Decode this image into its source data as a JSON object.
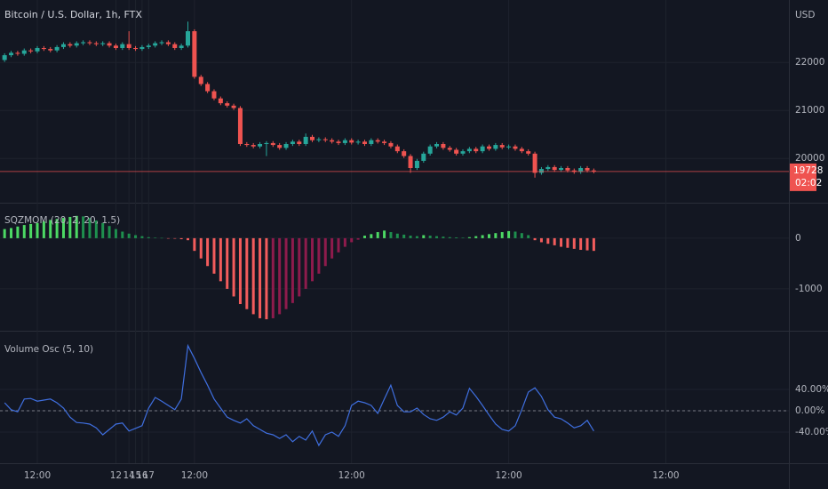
{
  "chart_data": [
    {
      "type": "candlestick",
      "title": "Bitcoin / U.S. Dollar, 1h, FTX",
      "unit_label": "USD",
      "up_color": "#26a69a",
      "down_color": "#ef5350",
      "x": [
        -5,
        -4,
        -3,
        -2,
        -1,
        0,
        1,
        2,
        3,
        4,
        5,
        6,
        7,
        8,
        9,
        10,
        11,
        12,
        13,
        14,
        15,
        16,
        17,
        18,
        19,
        20,
        21,
        22,
        23,
        24,
        25,
        26,
        27,
        28,
        29,
        30,
        31,
        32,
        33,
        34,
        35,
        36,
        37,
        38,
        39,
        40,
        41,
        42,
        43,
        44,
        45,
        46,
        47,
        48,
        49,
        50,
        51,
        52,
        53,
        54,
        55,
        56,
        57,
        58,
        59,
        60,
        61,
        62,
        63,
        64,
        65,
        66,
        67,
        68,
        69,
        70,
        71,
        72,
        73,
        74,
        75,
        76,
        77,
        78,
        79,
        80,
        81,
        82,
        83,
        84,
        85
      ],
      "open": [
        22050,
        22150,
        22200,
        22180,
        22250,
        22230,
        22300,
        22280,
        22250,
        22320,
        22380,
        22350,
        22400,
        22420,
        22400,
        22380,
        22400,
        22350,
        22300,
        22380,
        22300,
        22280,
        22320,
        22350,
        22400,
        22420,
        22380,
        22300,
        22350,
        22650,
        21700,
        21550,
        21400,
        21250,
        21150,
        21100,
        21050,
        20300,
        20280,
        20250,
        20300,
        20320,
        20280,
        20220,
        20300,
        20350,
        20300,
        20450,
        20380,
        20400,
        20380,
        20350,
        20320,
        20380,
        20330,
        20350,
        20300,
        20380,
        20350,
        20320,
        20250,
        20150,
        20050,
        19800,
        19950,
        20100,
        20250,
        20300,
        20220,
        20180,
        20100,
        20150,
        20200,
        20150,
        20250,
        20200,
        20280,
        20230,
        20250,
        20200,
        20150,
        20100,
        19700,
        19780,
        19820,
        19760,
        19800,
        19750,
        19720,
        19800,
        19750
      ],
      "high": [
        22190,
        22240,
        22240,
        22290,
        22290,
        22340,
        22340,
        22320,
        22360,
        22420,
        22420,
        22440,
        22460,
        22460,
        22440,
        22440,
        22440,
        22390,
        22420,
        22650,
        22340,
        22360,
        22390,
        22440,
        22460,
        22460,
        22420,
        22390,
        22850,
        22690,
        21740,
        21590,
        21440,
        21290,
        21190,
        21140,
        21090,
        20340,
        20320,
        20340,
        20360,
        20360,
        20320,
        20340,
        20390,
        20390,
        20520,
        20490,
        20440,
        20440,
        20420,
        20390,
        20420,
        20420,
        20390,
        20390,
        20420,
        20420,
        20390,
        20360,
        20290,
        20190,
        20090,
        19990,
        20140,
        20290,
        20340,
        20340,
        20260,
        20220,
        20190,
        20240,
        20240,
        20290,
        20290,
        20320,
        20320,
        20290,
        20290,
        20240,
        20190,
        20140,
        19820,
        19860,
        19860,
        19840,
        19840,
        19790,
        19840,
        19840,
        19790
      ],
      "low": [
        22010,
        22110,
        22140,
        22140,
        22190,
        22190,
        22240,
        22210,
        22210,
        22280,
        22310,
        22310,
        22360,
        22360,
        22340,
        22340,
        22310,
        22260,
        22260,
        22260,
        22240,
        22240,
        22280,
        22310,
        22360,
        22340,
        22260,
        22260,
        22310,
        21660,
        21510,
        21360,
        21210,
        21110,
        21060,
        21010,
        20260,
        20240,
        20210,
        20210,
        20050,
        20240,
        20180,
        20180,
        20260,
        20260,
        20260,
        20340,
        20340,
        20340,
        20310,
        20280,
        20280,
        20290,
        20290,
        20260,
        20260,
        20310,
        20280,
        20210,
        20110,
        20010,
        19700,
        19760,
        19910,
        20060,
        20210,
        20180,
        20140,
        20060,
        20060,
        20110,
        20110,
        20110,
        20160,
        20160,
        20190,
        20190,
        20160,
        20110,
        20060,
        19600,
        19660,
        19740,
        19720,
        19720,
        19710,
        19680,
        19680,
        19710,
        19690
      ],
      "close": [
        22150,
        22200,
        22180,
        22250,
        22230,
        22300,
        22280,
        22250,
        22320,
        22380,
        22350,
        22400,
        22420,
        22400,
        22380,
        22400,
        22350,
        22300,
        22380,
        22300,
        22280,
        22320,
        22350,
        22400,
        22420,
        22380,
        22300,
        22350,
        22650,
        21700,
        21550,
        21400,
        21250,
        21150,
        21100,
        21050,
        20300,
        20280,
        20250,
        20300,
        20320,
        20280,
        20220,
        20300,
        20350,
        20300,
        20450,
        20380,
        20400,
        20380,
        20350,
        20320,
        20380,
        20330,
        20350,
        20300,
        20380,
        20350,
        20320,
        20250,
        20150,
        20050,
        19800,
        19950,
        20100,
        20250,
        20300,
        20220,
        20180,
        20100,
        20150,
        20200,
        20150,
        20250,
        20200,
        20280,
        20230,
        20250,
        20200,
        20150,
        20100,
        19700,
        19780,
        19820,
        19760,
        19800,
        19750,
        19720,
        19800,
        19750,
        19728
      ],
      "last_price": 19728,
      "countdown": "02:02",
      "last_price_color": "#ef5350",
      "xlim": [
        -5.7,
        114.8
      ],
      "ylim": [
        19100,
        23300
      ],
      "yticks": [
        20000,
        21000,
        22000
      ],
      "grid": true
    },
    {
      "type": "bar",
      "title": "SQZMOM (20, 2, 20, 1.5)",
      "colors": {
        "positive_rising": "#4cd964",
        "positive_falling": "#1e8f4e",
        "negative_falling": "#f25c5c",
        "negative_rising": "#8e1b4c"
      },
      "x": [
        -5,
        -4,
        -3,
        -2,
        -1,
        0,
        1,
        2,
        3,
        4,
        5,
        6,
        7,
        8,
        9,
        10,
        11,
        12,
        13,
        14,
        15,
        16,
        17,
        18,
        19,
        20,
        21,
        22,
        23,
        24,
        25,
        26,
        27,
        28,
        29,
        30,
        31,
        32,
        33,
        34,
        35,
        36,
        37,
        38,
        39,
        40,
        41,
        42,
        43,
        44,
        45,
        46,
        47,
        48,
        49,
        50,
        51,
        52,
        53,
        54,
        55,
        56,
        57,
        58,
        59,
        60,
        61,
        62,
        63,
        64,
        65,
        66,
        67,
        68,
        69,
        70,
        71,
        72,
        73,
        74,
        75,
        76,
        77,
        78,
        79,
        80,
        81,
        82,
        83,
        84,
        85
      ],
      "values": [
        180,
        200,
        230,
        260,
        280,
        300,
        330,
        360,
        380,
        400,
        420,
        440,
        430,
        400,
        350,
        300,
        240,
        180,
        130,
        90,
        60,
        40,
        20,
        10,
        5,
        -5,
        -10,
        -20,
        -40,
        -250,
        -400,
        -550,
        -700,
        -850,
        -1000,
        -1150,
        -1300,
        -1400,
        -1500,
        -1580,
        -1600,
        -1580,
        -1500,
        -1400,
        -1280,
        -1150,
        -1000,
        -850,
        -700,
        -550,
        -400,
        -280,
        -170,
        -80,
        -30,
        50,
        80,
        120,
        150,
        120,
        90,
        70,
        50,
        40,
        60,
        50,
        40,
        30,
        20,
        15,
        10,
        20,
        40,
        60,
        80,
        100,
        120,
        140,
        130,
        100,
        60,
        -40,
        -80,
        -110,
        -140,
        -170,
        -190,
        -210,
        -230,
        -240,
        -250
      ],
      "xlim": [
        -5.7,
        114.8
      ],
      "ylim": [
        -1800,
        700
      ],
      "yticks": [
        -1000,
        0
      ],
      "grid": true
    },
    {
      "type": "line",
      "title": "Volume Osc (5, 10)",
      "color": "#3f6fe0",
      "hline": 0,
      "x": [
        -5,
        -4,
        -3,
        -2,
        -1,
        0,
        1,
        2,
        3,
        4,
        5,
        6,
        7,
        8,
        9,
        10,
        11,
        12,
        13,
        14,
        15,
        16,
        17,
        18,
        19,
        20,
        21,
        22,
        23,
        24,
        25,
        26,
        27,
        28,
        29,
        30,
        31,
        32,
        33,
        34,
        35,
        36,
        37,
        38,
        39,
        40,
        41,
        42,
        43,
        44,
        45,
        46,
        47,
        48,
        49,
        50,
        51,
        52,
        53,
        54,
        55,
        56,
        57,
        58,
        59,
        60,
        61,
        62,
        63,
        64,
        65,
        66,
        67,
        68,
        69,
        70,
        71,
        72,
        73,
        74,
        75,
        76,
        77,
        78,
        79,
        80,
        81,
        82,
        83,
        84,
        85
      ],
      "values": [
        15,
        2,
        -2,
        22,
        23,
        18,
        20,
        22,
        15,
        5,
        -12,
        -22,
        -23,
        -25,
        -32,
        -45,
        -35,
        -25,
        -23,
        -38,
        -33,
        -28,
        5,
        25,
        18,
        10,
        2,
        22,
        122,
        98,
        72,
        48,
        22,
        5,
        -12,
        -18,
        -23,
        -15,
        -28,
        -35,
        -42,
        -45,
        -52,
        -45,
        -58,
        -48,
        -55,
        -38,
        -65,
        -45,
        -40,
        -48,
        -28,
        10,
        18,
        15,
        10,
        -5,
        22,
        48,
        10,
        -2,
        -2,
        5,
        -7,
        -15,
        -18,
        -12,
        -2,
        -8,
        5,
        42,
        27,
        10,
        -8,
        -25,
        -35,
        -38,
        -28,
        2,
        35,
        43,
        27,
        2,
        -12,
        -15,
        -23,
        -32,
        -28,
        -18,
        -38
      ],
      "xlim": [
        -5.7,
        114.8
      ],
      "ylim": [
        -100,
        150
      ],
      "yticks": [
        {
          "value": -40,
          "label": "-40.00%"
        },
        {
          "value": 0,
          "label": "0.00%"
        },
        {
          "value": 40,
          "label": "40.00%"
        }
      ],
      "xticks": [
        {
          "value": 0,
          "label": "12:00"
        },
        12,
        {
          "value": 24,
          "label": "12:00"
        },
        14,
        {
          "value": 48,
          "label": "12:00"
        },
        15,
        {
          "value": 72,
          "label": "12:00"
        },
        16,
        {
          "value": 96,
          "label": "12:00"
        },
        17
      ],
      "grid": true
    }
  ]
}
